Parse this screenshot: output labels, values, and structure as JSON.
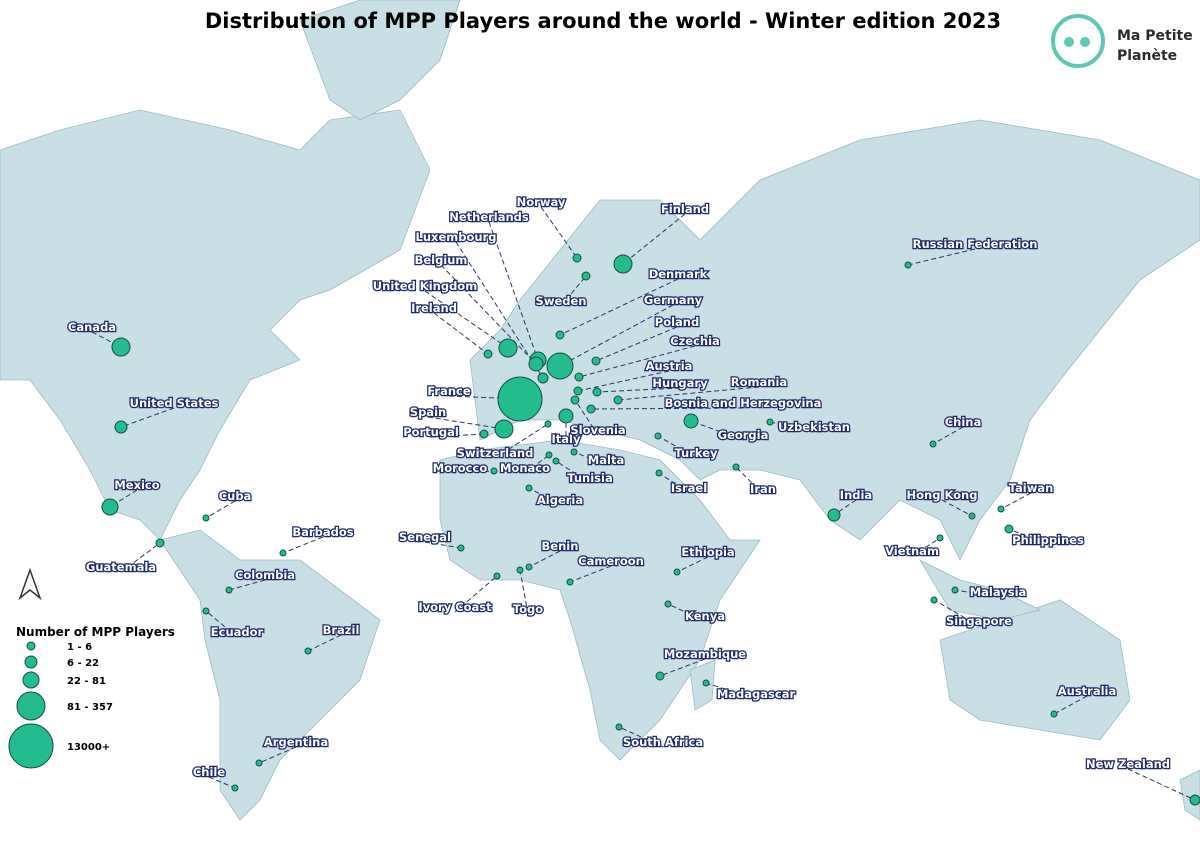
{
  "header": {
    "title": "Distribution of MPP Players around the world - Winter edition 2023",
    "logo_text": [
      "Ma Petite",
      "Planète"
    ]
  },
  "legend": {
    "title": "Number of MPP Players",
    "items": [
      "1 - 6",
      "6 - 22",
      "22 - 81",
      "81 - 357",
      "13000+"
    ]
  },
  "countries": [
    "Canada",
    "United States",
    "Mexico",
    "Cuba",
    "Guatemala",
    "Barbados",
    "Colombia",
    "Ecuador",
    "Brazil",
    "Argentina",
    "Chile",
    "Senegal",
    "Morocco",
    "Ivory Coast",
    "Togo",
    "Benin",
    "Cameroon",
    "Algeria",
    "Tunisia",
    "Monaco",
    "Malta",
    "Italy",
    "Switzerland",
    "Portugal",
    "Spain",
    "France",
    "Ireland",
    "United Kingdom",
    "Belgium",
    "Luxembourg",
    "Netherlands",
    "Norway",
    "Sweden",
    "Finland",
    "Denmark",
    "Germany",
    "Poland",
    "Czechia",
    "Austria",
    "Hungary",
    "Romania",
    "Bosnia and Herzegovina",
    "Slovenia",
    "Georgia",
    "Uzbekistan",
    "Turkey",
    "Israel",
    "Iran",
    "Ethiopia",
    "Kenya",
    "Mozambique",
    "Madagascar",
    "South Africa",
    "Russian Federation",
    "China",
    "India",
    "Hong Kong",
    "Taiwan",
    "Vietnam",
    "Philippines",
    "Malaysia",
    "Singapore",
    "Australia",
    "New Zealand"
  ]
}
